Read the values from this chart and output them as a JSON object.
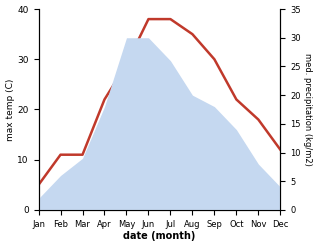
{
  "months": [
    "Jan",
    "Feb",
    "Mar",
    "Apr",
    "May",
    "Jun",
    "Jul",
    "Aug",
    "Sep",
    "Oct",
    "Nov",
    "Dec"
  ],
  "temperature": [
    5,
    11,
    11,
    22,
    29,
    38,
    38,
    35,
    30,
    22,
    18,
    12
  ],
  "precipitation": [
    2,
    6,
    9,
    18,
    30,
    30,
    26,
    20,
    18,
    14,
    8,
    4
  ],
  "temp_color": "#c0392b",
  "precip_color": "#c5d8f0",
  "left_ylim": [
    0,
    40
  ],
  "right_ylim": [
    0,
    35
  ],
  "left_yticks": [
    0,
    10,
    20,
    30,
    40
  ],
  "right_yticks": [
    0,
    5,
    10,
    15,
    20,
    25,
    30,
    35
  ],
  "xlabel": "date (month)",
  "ylabel_left": "max temp (C)",
  "ylabel_right": "med. precipitation (kg/m2)",
  "precip_scale_factor": 0.875
}
